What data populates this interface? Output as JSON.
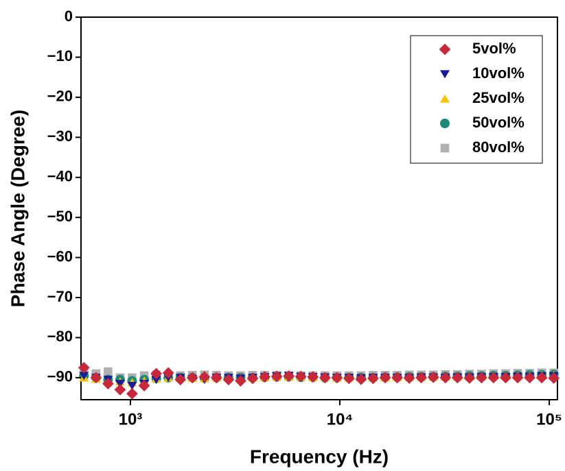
{
  "chart_data": {
    "type": "scatter",
    "xlabel": "Frequency (Hz)",
    "ylabel": "Phase Angle (Degree)",
    "xscale": "log",
    "xlim": [
      581,
      109400
    ],
    "ylim": [
      -95.5,
      0
    ],
    "xticks": [
      {
        "value": 1000,
        "label": "10³"
      },
      {
        "value": 10000,
        "label": "10⁴"
      },
      {
        "value": 100000,
        "label": "10⁵"
      }
    ],
    "yticks": [
      0,
      {
        "value": -10,
        "label": "−10"
      },
      {
        "value": -20,
        "label": "−20"
      },
      {
        "value": -30,
        "label": "−30"
      },
      {
        "value": -40,
        "label": "−40"
      },
      {
        "value": -50,
        "label": "−50"
      },
      {
        "value": -60,
        "label": "−60"
      },
      {
        "value": -70,
        "label": "−70"
      },
      {
        "value": -80,
        "label": "−80"
      },
      {
        "value": -90,
        "label": "−90"
      }
    ],
    "legend": "upper right",
    "x": [
      600,
      685,
      782,
      893,
      1019,
      1164,
      1329,
      1517,
      1732,
      1977,
      2257,
      2577,
      2942,
      3358,
      3834,
      4377,
      4997,
      5704,
      6512,
      7434,
      8487,
      9689,
      11061,
      12627,
      14415,
      16457,
      18787,
      21447,
      24484,
      27951,
      31909,
      36427,
      41585,
      47474,
      54196,
      61871,
      70632,
      80633,
      92051,
      105085
    ],
    "series": [
      {
        "name": "5vol%",
        "color": "#c8283a",
        "marker": "diamond",
        "values": [
          -87.5,
          -90,
          -91.5,
          -93,
          -94,
          -92,
          -89,
          -88.8,
          -90.5,
          -90,
          -89.8,
          -90,
          -90.5,
          -90.8,
          -90.2,
          -89.8,
          -89.7,
          -89.6,
          -89.7,
          -89.8,
          -90,
          -90,
          -90.2,
          -90.4,
          -90.2,
          -90,
          -90,
          -90.1,
          -90,
          -89.9,
          -90,
          -90,
          -90.1,
          -90,
          -90,
          -90,
          -90,
          -90,
          -90,
          -90.1
        ]
      },
      {
        "name": "10vol%",
        "color": "#1a1a9c",
        "marker": "triangle-down",
        "values": [
          -89.5,
          -90,
          -90.5,
          -91.5,
          -92,
          -91.5,
          -90.5,
          -90,
          -90,
          -90.3,
          -90.5,
          -90,
          -90,
          -90.2,
          -90,
          -89.8,
          -89.6,
          -89.5,
          -89.7,
          -89.8,
          -89.9,
          -90,
          -90,
          -90.1,
          -90,
          -90,
          -90,
          -90,
          -89.9,
          -89.9,
          -90,
          -89.9,
          -89.9,
          -89.8,
          -89.8,
          -89.8,
          -89.7,
          -89.7,
          -89.6,
          -89.6
        ]
      },
      {
        "name": "25vol%",
        "color": "#f2c500",
        "marker": "triangle-up",
        "values": [
          -90,
          -90.3,
          -90.8,
          -91,
          -91.2,
          -90.8,
          -90.3,
          -90,
          -90,
          -90.1,
          -90.2,
          -90,
          -90,
          -90.1,
          -90,
          -89.9,
          -89.8,
          -89.8,
          -89.8,
          -89.9,
          -89.9,
          -90,
          -90,
          -90,
          -90,
          -90,
          -89.9,
          -89.9,
          -89.9,
          -89.8,
          -89.8,
          -89.8,
          -89.7,
          -89.7,
          -89.6,
          -89.6,
          -89.5,
          -89.5,
          -89.4,
          -89.4
        ]
      },
      {
        "name": "50vol%",
        "color": "#1f8a7a",
        "marker": "circle",
        "values": [
          -89.5,
          -90,
          -90.5,
          -90.5,
          -90.8,
          -90.5,
          -90.2,
          -90,
          -90,
          -90,
          -90.1,
          -90,
          -90,
          -90,
          -90,
          -89.9,
          -89.8,
          -89.8,
          -89.9,
          -89.9,
          -90,
          -90,
          -90,
          -90,
          -90,
          -89.9,
          -89.9,
          -89.8,
          -89.8,
          -89.8,
          -89.7,
          -89.7,
          -89.6,
          -89.6,
          -89.5,
          -89.5,
          -89.4,
          -89.3,
          -89.3,
          -89.2
        ]
      },
      {
        "name": "80vol%",
        "color": "#b0b0b0",
        "marker": "square",
        "values": [
          -89,
          -89,
          -88.5,
          -90,
          -90,
          -89.5,
          -89.3,
          -89.5,
          -89.5,
          -89.4,
          -89.3,
          -89.4,
          -89.5,
          -89.5,
          -89.4,
          -89.4,
          -89.4,
          -89.5,
          -89.5,
          -89.5,
          -89.5,
          -89.5,
          -89.5,
          -89.5,
          -89.4,
          -89.4,
          -89.4,
          -89.3,
          -89.3,
          -89.3,
          -89.2,
          -89.2,
          -89.1,
          -89.1,
          -89,
          -89,
          -88.9,
          -88.9,
          -88.8,
          -88.8
        ]
      }
    ]
  }
}
